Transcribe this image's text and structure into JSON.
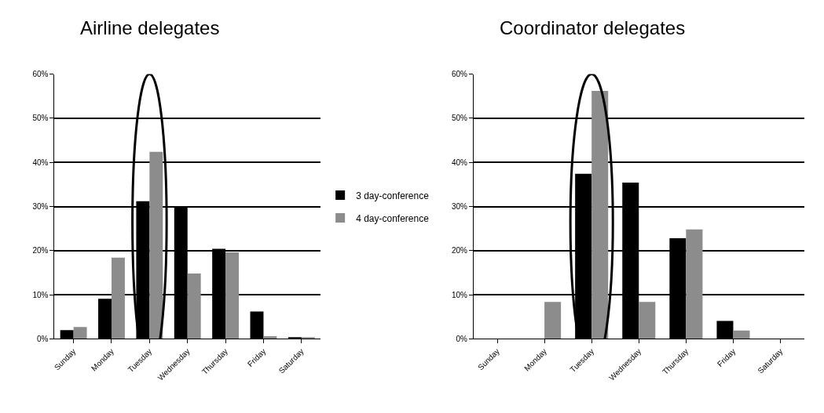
{
  "chart_data": [
    {
      "type": "bar",
      "title": "Airline delegates",
      "categories": [
        "Sunday",
        "Monday",
        "Tuesday",
        "Wednesday",
        "Thursday",
        "Friday",
        "Saturday"
      ],
      "series": [
        {
          "name": "3 day-conference",
          "color": "#000000",
          "values": [
            2.0,
            9.1,
            31.2,
            29.8,
            20.4,
            6.2,
            0.4
          ]
        },
        {
          "name": "4 day-conference",
          "color": "#8c8c8c",
          "values": [
            2.7,
            18.4,
            42.4,
            14.8,
            19.6,
            0.6,
            0.4
          ]
        }
      ],
      "ylim": [
        0,
        60
      ],
      "yticks": [
        {
          "value": 0,
          "label": "0%"
        },
        {
          "value": 10,
          "label": "10%"
        },
        {
          "value": 20,
          "label": "20%"
        },
        {
          "value": 30,
          "label": "30%"
        },
        {
          "value": 40,
          "label": "40%"
        },
        {
          "value": 50,
          "label": "50%"
        },
        {
          "value": 60,
          "label": "60%"
        }
      ],
      "grid": "y",
      "legend": "right"
    },
    {
      "type": "bar",
      "title": "Coordinator delegates",
      "categories": [
        "Sunday",
        "Monday",
        "Tuesday",
        "Wednesday",
        "Thursday",
        "Friday",
        "Saturday"
      ],
      "series": [
        {
          "color": "#000000",
          "values": [
            0,
            0,
            37.4,
            35.4,
            22.8,
            4.1,
            0
          ]
        },
        {
          "color": "#8c8c8c",
          "values": [
            0,
            8.4,
            56.2,
            8.4,
            24.8,
            1.9,
            0
          ]
        }
      ],
      "ylim": [
        0,
        60
      ],
      "yticks": [
        {
          "value": 0,
          "label": "0%"
        },
        {
          "value": 10,
          "label": "10%"
        },
        {
          "value": 20,
          "label": "20%"
        },
        {
          "value": 30,
          "label": "30%"
        },
        {
          "value": 40,
          "label": "40%"
        },
        {
          "value": 50,
          "label": "50%"
        },
        {
          "value": 60,
          "label": "60%"
        }
      ],
      "grid": "y"
    }
  ]
}
